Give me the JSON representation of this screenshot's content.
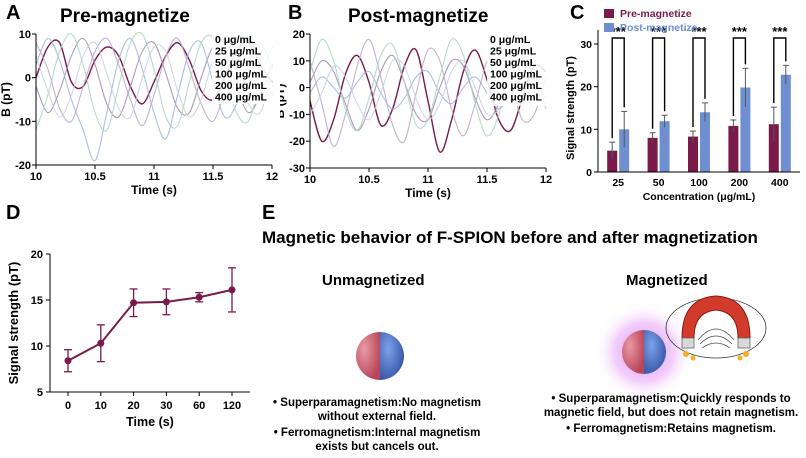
{
  "panels": {
    "A": {
      "letter": "A",
      "title": "Pre-magnetize"
    },
    "B": {
      "letter": "B",
      "title": "Post-magnetize"
    },
    "C": {
      "letter": "C"
    },
    "D": {
      "letter": "D"
    },
    "E": {
      "letter": "E"
    }
  },
  "colors": {
    "pre": "#7a1a4a",
    "post": "#6f8fd0",
    "s0": "#7a1a4a",
    "s25": "#a08ab0",
    "s50": "#b7a7c8",
    "s100": "#9fb3dd",
    "s200": "#a9d6c0",
    "s400": "#c9cfe8"
  },
  "chart_data": [
    {
      "id": "A",
      "type": "line",
      "title": "Pre-magnetize",
      "xlabel": "Time (s)",
      "ylabel": "B (pT)",
      "xlim": [
        10,
        12
      ],
      "ylim": [
        -20,
        10
      ],
      "xticks": [
        "10",
        "10.5",
        "11",
        "11.5",
        "12"
      ],
      "yticks": [
        "10",
        "0",
        "-10",
        "-20"
      ],
      "legend": [
        "0 μg/mL",
        "25 μg/mL",
        "50 μg/mL",
        "100 μg/mL",
        "200 μg/mL",
        "400 μg/mL"
      ],
      "series": [
        {
          "name": "0 μg/mL",
          "x": [
            10,
            10.1,
            10.2,
            10.3,
            10.4,
            10.5,
            10.6,
            10.7,
            10.8,
            10.9,
            11,
            11.1,
            11.2,
            11.3,
            11.4,
            11.5,
            11.6,
            11.7,
            11.8,
            11.9,
            12
          ],
          "y": [
            0,
            7,
            8,
            -1,
            -2,
            4,
            7,
            5,
            -2,
            -6,
            -1,
            5,
            8,
            4,
            -3,
            -5,
            0,
            6,
            8,
            3,
            -1
          ]
        },
        {
          "name": "25 μg/mL",
          "x": [
            10,
            10.1,
            10.2,
            10.3,
            10.4,
            10.5,
            10.6,
            10.7,
            10.8,
            10.9,
            11,
            11.1,
            11.2,
            11.3,
            11.4,
            11.5,
            11.6,
            11.7,
            11.8,
            11.9,
            12
          ],
          "y": [
            -2,
            -8,
            -3,
            5,
            9,
            3,
            -6,
            -9,
            -2,
            6,
            8,
            1,
            -7,
            -8,
            0,
            7,
            6,
            -2,
            -8,
            -4,
            3
          ]
        },
        {
          "name": "50 μg/mL",
          "x": [
            10,
            10.1,
            10.2,
            10.3,
            10.4,
            10.5,
            10.6,
            10.7,
            10.8,
            10.9,
            11,
            11.1,
            11.2,
            11.3,
            11.4,
            11.5,
            11.6,
            11.7,
            11.8,
            11.9,
            12
          ],
          "y": [
            8,
            2,
            -7,
            -10,
            -2,
            6,
            9,
            3,
            -5,
            -11,
            -4,
            5,
            9,
            2,
            -6,
            -10,
            -3,
            6,
            9,
            4,
            -4
          ]
        },
        {
          "name": "100 μg/mL",
          "x": [
            10,
            10.1,
            10.2,
            10.3,
            10.4,
            10.5,
            10.6,
            10.7,
            10.8,
            10.9,
            11,
            11.1,
            11.2,
            11.3,
            11.4,
            11.5,
            11.6,
            11.7,
            11.8,
            11.9,
            12
          ],
          "y": [
            3,
            9,
            4,
            -5,
            -12,
            -19,
            -8,
            4,
            9,
            2,
            -8,
            -14,
            -4,
            6,
            8,
            -1,
            -9,
            -6,
            3,
            8,
            2
          ]
        },
        {
          "name": "200 μg/mL",
          "x": [
            10,
            10.1,
            10.2,
            10.3,
            10.4,
            10.5,
            10.6,
            10.7,
            10.8,
            10.9,
            11,
            11.1,
            11.2,
            11.3,
            11.4,
            11.5,
            11.6,
            11.7,
            11.8,
            11.9,
            12
          ],
          "y": [
            -12,
            -4,
            6,
            10,
            3,
            -8,
            -12,
            -2,
            8,
            10,
            2,
            -9,
            -11,
            -1,
            8,
            9,
            0,
            -8,
            -10,
            -1,
            7
          ]
        },
        {
          "name": "400 μg/mL",
          "x": [
            10,
            10.1,
            10.2,
            10.3,
            10.4,
            10.5,
            10.6,
            10.7,
            10.8,
            10.9,
            11,
            11.1,
            11.2,
            11.3,
            11.4,
            11.5,
            11.6,
            11.7,
            11.8,
            11.9,
            12
          ],
          "y": [
            5,
            -3,
            -9,
            -4,
            5,
            8,
            1,
            -7,
            -9,
            0,
            7,
            6,
            -3,
            -9,
            -5,
            4,
            8,
            2,
            -6,
            -8,
            1
          ]
        }
      ]
    },
    {
      "id": "B",
      "type": "line",
      "title": "Post-magnetize",
      "xlabel": "Time (s)",
      "ylabel": "B (pT)",
      "xlim": [
        10,
        12
      ],
      "ylim": [
        -30,
        20
      ],
      "xticks": [
        "10",
        "10.5",
        "11",
        "11.5",
        "12"
      ],
      "yticks": [
        "20",
        "10",
        "0",
        "-10",
        "-20",
        "-30"
      ],
      "legend": [
        "0 μg/mL",
        "25 μg/mL",
        "50 μg/mL",
        "100 μg/mL",
        "200 μg/mL",
        "400 μg/mL"
      ],
      "series": [
        {
          "name": "0 μg/mL",
          "x": [
            10,
            10.1,
            10.2,
            10.3,
            10.4,
            10.5,
            10.6,
            10.7,
            10.8,
            10.9,
            11,
            11.1,
            11.2,
            11.3,
            11.4,
            11.5,
            11.6,
            11.7,
            11.8,
            11.9,
            12
          ],
          "y": [
            -5,
            -20,
            -12,
            5,
            12,
            2,
            -14,
            -8,
            8,
            14,
            -5,
            -24,
            -12,
            6,
            14,
            3,
            -12,
            -16,
            -4,
            8,
            6
          ]
        },
        {
          "name": "25 μg/mL",
          "x": [
            10,
            10.1,
            10.2,
            10.3,
            10.4,
            10.5,
            10.6,
            10.7,
            10.8,
            10.9,
            11,
            11.1,
            11.2,
            11.3,
            11.4,
            11.5,
            11.6,
            11.7,
            11.8,
            11.9,
            12
          ],
          "y": [
            2,
            10,
            6,
            -6,
            -16,
            -8,
            6,
            12,
            2,
            -10,
            -12,
            0,
            10,
            8,
            -4,
            -12,
            -6,
            6,
            11,
            3,
            -4
          ]
        },
        {
          "name": "50 μg/mL",
          "x": [
            10,
            10.1,
            10.2,
            10.3,
            10.4,
            10.5,
            10.6,
            10.7,
            10.8,
            10.9,
            11,
            11.1,
            11.2,
            11.3,
            11.4,
            11.5,
            11.6,
            11.7,
            11.8,
            11.9,
            12
          ],
          "y": [
            10,
            -6,
            -22,
            -10,
            8,
            18,
            4,
            -14,
            -20,
            -2,
            14,
            10,
            -8,
            -18,
            -6,
            10,
            16,
            2,
            -12,
            -10,
            4
          ]
        },
        {
          "name": "100 μg/mL",
          "x": [
            10,
            10.1,
            10.2,
            10.3,
            10.4,
            10.5,
            10.6,
            10.7,
            10.8,
            10.9,
            11,
            11.1,
            11.2,
            11.3,
            11.4,
            11.5,
            11.6,
            11.7,
            11.8,
            11.9,
            12
          ],
          "y": [
            -2,
            4,
            0,
            -4,
            2,
            6,
            -2,
            -8,
            -4,
            4,
            6,
            -2,
            -6,
            0,
            4,
            -2,
            -8,
            -2,
            4,
            2,
            -4
          ]
        },
        {
          "name": "200 μg/mL",
          "x": [
            10,
            10.1,
            10.2,
            10.3,
            10.4,
            10.5,
            10.6,
            10.7,
            10.8,
            10.9,
            11,
            11.1,
            11.2,
            11.3,
            11.4,
            11.5,
            11.6,
            11.7,
            11.8,
            11.9,
            12
          ],
          "y": [
            6,
            18,
            10,
            -8,
            -16,
            -4,
            12,
            16,
            2,
            -14,
            -12,
            4,
            18,
            12,
            -6,
            -18,
            -10,
            8,
            16,
            6,
            -8
          ]
        },
        {
          "name": "400 μg/mL",
          "x": [
            10,
            10.1,
            10.2,
            10.3,
            10.4,
            10.5,
            10.6,
            10.7,
            10.8,
            10.9,
            11,
            11.1,
            11.2,
            11.3,
            11.4,
            11.5,
            11.6,
            11.7,
            11.8,
            11.9,
            12
          ],
          "y": [
            -10,
            -2,
            8,
            4,
            -6,
            -12,
            -2,
            10,
            8,
            -4,
            -12,
            -6,
            6,
            10,
            0,
            -10,
            -8,
            4,
            10,
            2,
            -6
          ]
        }
      ]
    },
    {
      "id": "C",
      "type": "bar",
      "xlabel": "Concentration (μg/mL)",
      "ylabel": "Signal strength (pT)",
      "ylim": [
        0,
        30
      ],
      "yticks": [
        "0",
        "10",
        "20",
        "30"
      ],
      "categories": [
        "25",
        "50",
        "100",
        "200",
        "400"
      ],
      "series": [
        {
          "name": "Pre-magnetize",
          "values": [
            5.0,
            8.0,
            8.3,
            10.8,
            11.2
          ],
          "errors": [
            2.0,
            1.2,
            1.3,
            1.4,
            4.0
          ]
        },
        {
          "name": "Post-magnetize",
          "values": [
            10.0,
            11.9,
            14.0,
            19.8,
            22.8
          ],
          "errors": [
            4.2,
            1.4,
            2.2,
            4.5,
            2.2
          ]
        }
      ],
      "significance": [
        "***",
        "***",
        "***",
        "***",
        "***"
      ]
    },
    {
      "id": "D",
      "type": "line",
      "xlabel": "Time (s)",
      "ylabel": "Signal strength (pT)",
      "ylim": [
        5,
        20
      ],
      "yticks": [
        "20",
        "15",
        "10",
        "5"
      ],
      "categories": [
        "0",
        "10",
        "20",
        "30",
        "60",
        "120"
      ],
      "values": [
        8.4,
        10.3,
        14.7,
        14.8,
        15.3,
        16.1
      ],
      "errors": [
        1.2,
        2.0,
        1.5,
        1.4,
        0.5,
        2.4
      ]
    }
  ],
  "panelE": {
    "title": "Magnetic behavior of F-SPION before and after magnetization",
    "left": {
      "heading": "Unmagnetized",
      "bullets": [
        "Superparamagnetism:No magnetism without external field.",
        "Ferromagnetism:Internal magnetism exists but cancels out."
      ]
    },
    "right": {
      "heading": "Magnetized",
      "bullets": [
        "Superparamagnetism:Quickly responds to magnetic field, but does not retain magnetism.",
        "Ferromagnetism:Retains magnetism."
      ]
    }
  }
}
